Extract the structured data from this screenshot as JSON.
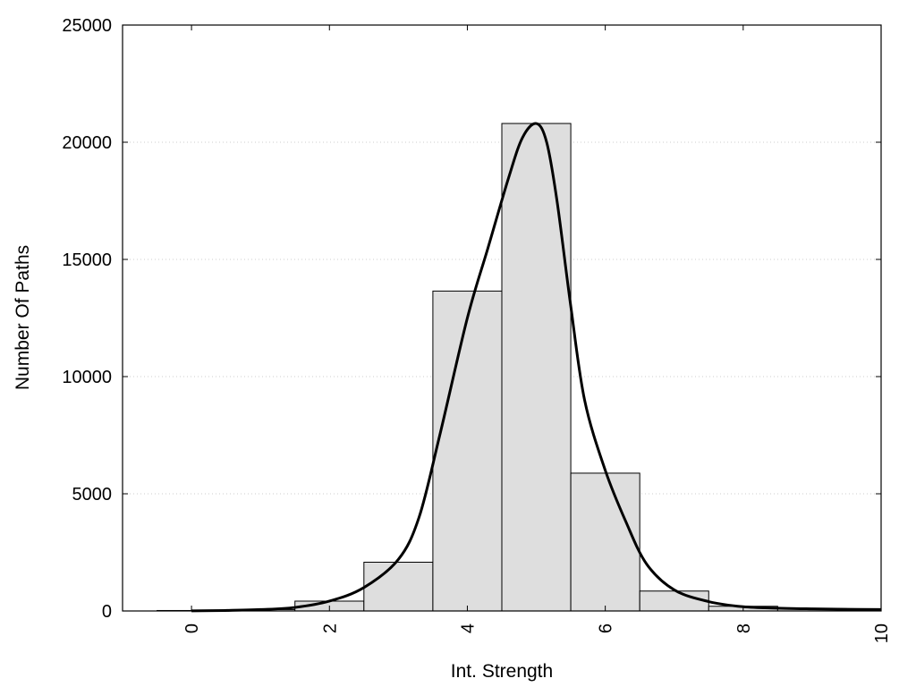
{
  "chart_data": {
    "type": "bar",
    "title": "",
    "xlabel": "Int. Strength",
    "ylabel": "Number Of Paths",
    "xlim": [
      -1,
      10
    ],
    "ylim": [
      0,
      25000
    ],
    "x_ticks": [
      0,
      2,
      4,
      6,
      8,
      10
    ],
    "y_ticks": [
      0,
      5000,
      10000,
      15000,
      20000,
      25000
    ],
    "grid": "horizontal dotted",
    "bins": [
      {
        "x": 0,
        "value": 20
      },
      {
        "x": 1,
        "value": 60
      },
      {
        "x": 2,
        "value": 420
      },
      {
        "x": 3,
        "value": 2080
      },
      {
        "x": 4,
        "value": 13650
      },
      {
        "x": 5,
        "value": 20800
      },
      {
        "x": 6,
        "value": 5880
      },
      {
        "x": 7,
        "value": 850
      },
      {
        "x": 8,
        "value": 200
      },
      {
        "x": 9,
        "value": 100
      },
      {
        "x": 10,
        "value": 80
      }
    ],
    "curve": {
      "x": [
        0,
        0.5,
        1,
        1.5,
        2,
        2.5,
        3,
        3.3,
        3.6,
        4,
        4.3,
        4.6,
        4.8,
        5,
        5.15,
        5.3,
        5.5,
        5.7,
        6,
        6.3,
        6.6,
        7,
        7.5,
        8,
        8.5,
        9,
        9.5,
        10
      ],
      "y": [
        5,
        20,
        60,
        150,
        420,
        1000,
        2200,
        4000,
        7500,
        12500,
        15500,
        18500,
        20200,
        20800,
        20000,
        17500,
        13000,
        9000,
        6000,
        3800,
        2000,
        900,
        400,
        180,
        120,
        90,
        70,
        60
      ]
    },
    "bar_fill": "#dedede",
    "bar_stroke": "#000000",
    "curve_color": "#000000",
    "grid_color": "#cccccc"
  }
}
